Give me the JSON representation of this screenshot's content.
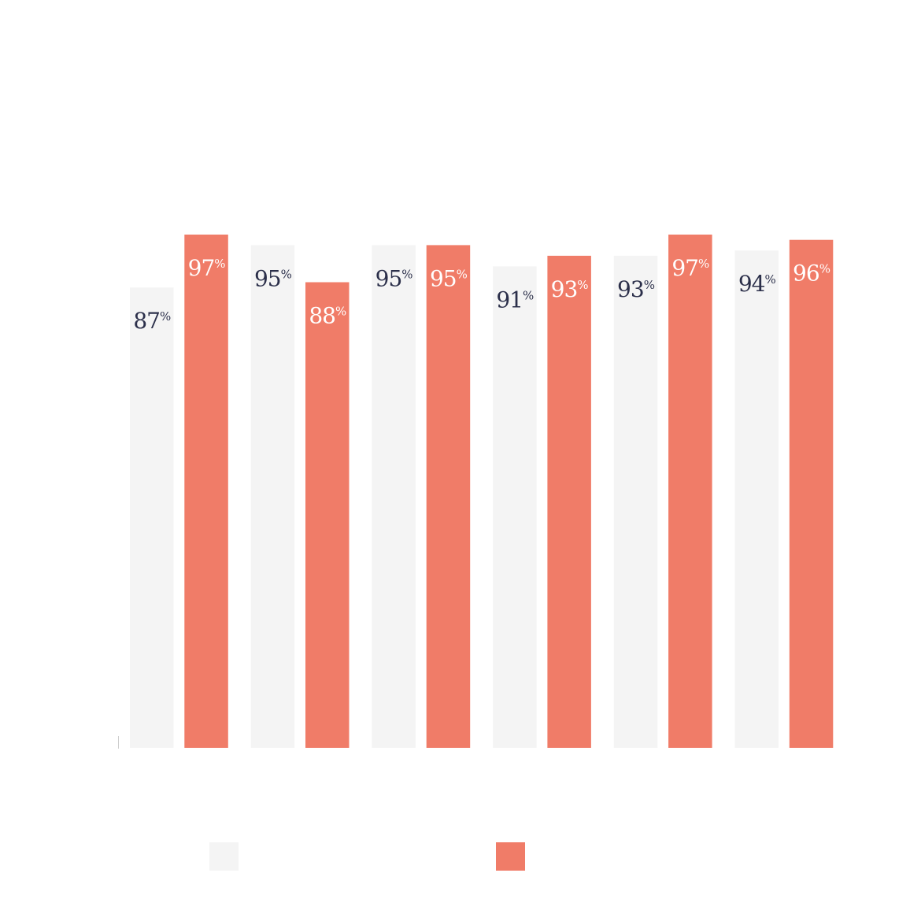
{
  "chart_data": {
    "type": "bar",
    "categories": [
      "",
      "",
      "",
      "",
      "",
      ""
    ],
    "series": [
      {
        "color": "#f4f4f4",
        "label_color": "#2b2f4a",
        "values": [
          87,
          95,
          95,
          91,
          93,
          94
        ]
      },
      {
        "color": "#f07c68",
        "label_color": "#ffffff",
        "values": [
          97,
          88,
          95,
          93,
          97,
          96
        ]
      }
    ],
    "value_suffix": "%",
    "ylim": [
      0,
      97
    ],
    "grid": false,
    "legend_position": "bottom",
    "title": "",
    "xlabel": "",
    "ylabel": ""
  }
}
